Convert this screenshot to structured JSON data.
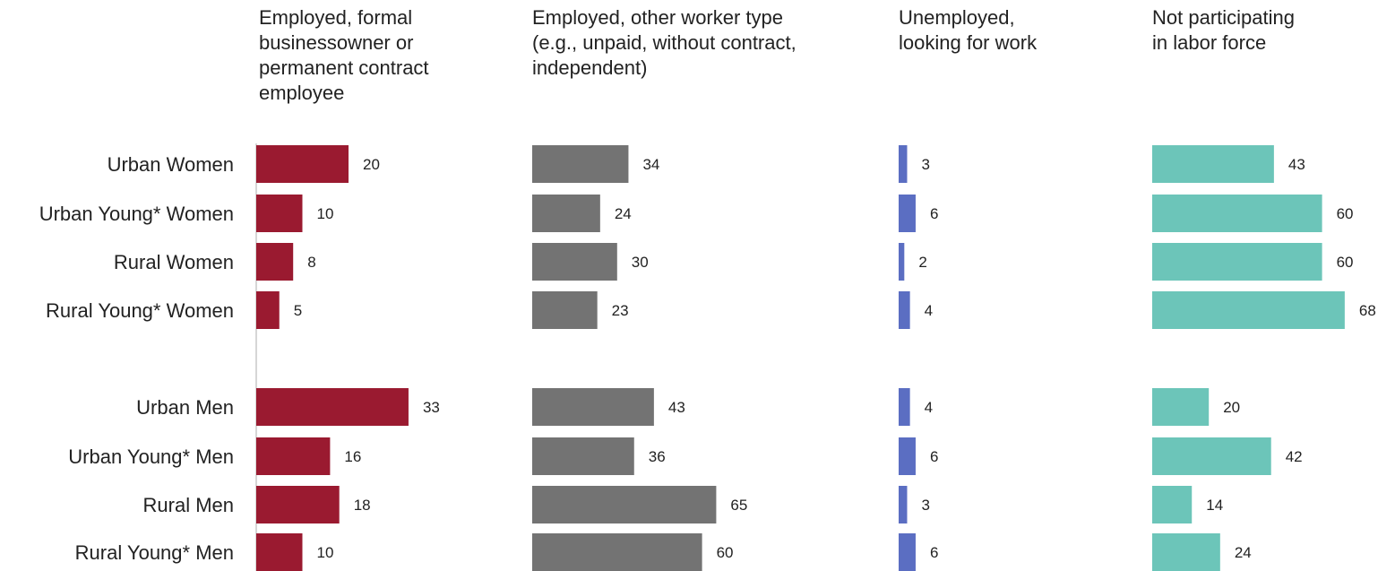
{
  "chart_data": {
    "type": "bar",
    "orientation": "horizontal",
    "categories": [
      "Urban Women",
      "Urban Young* Women",
      "Rural Women",
      "Rural Young* Women",
      "Urban Men",
      "Urban Young* Men",
      "Rural Men",
      "Rural Young* Men"
    ],
    "series": [
      {
        "name": "Employed, formal businessowner  or permanent contract employee",
        "color": "#9a1a30",
        "values": [
          20,
          10,
          8,
          5,
          33,
          16,
          18,
          10
        ]
      },
      {
        "name": "Employed, other worker type (e.g., unpaid, without contract, independent)",
        "color": "#737373",
        "values": [
          34,
          24,
          30,
          23,
          43,
          36,
          65,
          60
        ]
      },
      {
        "name": "Unemployed, looking for work",
        "color": "#5b6ec2",
        "values": [
          3,
          6,
          2,
          4,
          4,
          6,
          3,
          6
        ]
      },
      {
        "name": "Not participating in labor force",
        "color": "#6cc5b9",
        "values": [
          43,
          60,
          60,
          68,
          20,
          42,
          14,
          24
        ]
      }
    ],
    "layout": "small multiples",
    "data_labels": true,
    "grid": false,
    "legend": "none"
  },
  "column_titles": [
    "Employed, formal\nbusinessowner  or\npermanent contract\nemployee",
    "Employed, other worker type\n(e.g., unpaid, without contract,\nindependent)",
    "Unemployed,\nlooking for work",
    "Not participating\nin labor force"
  ]
}
